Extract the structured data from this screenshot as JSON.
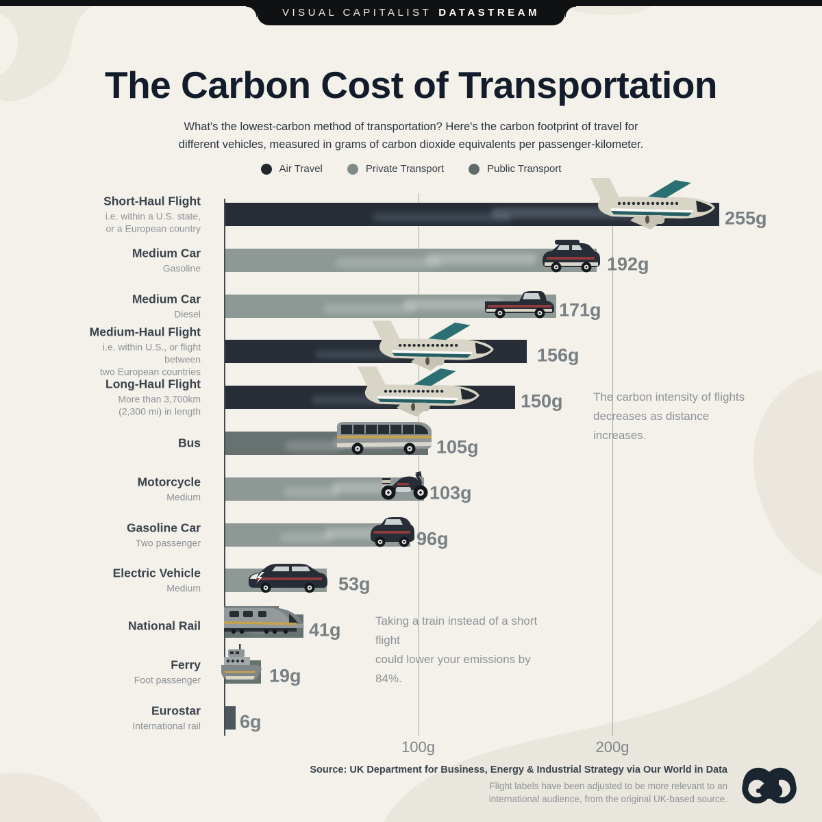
{
  "banner": {
    "brand": "VISUAL CAPITALIST",
    "product": "DATASTREAM"
  },
  "header": {
    "title": "The Carbon Cost of Transportation",
    "subtitle": "What's the lowest-carbon method of transportation? Here's the carbon footprint of travel for\ndifferent vehicles, measured in grams of carbon dioxide equivalents per passenger-kilometer."
  },
  "legend": [
    {
      "label": "Air Travel",
      "color": "#22262b",
      "category": "air"
    },
    {
      "label": "Private Transport",
      "color": "#7e8b88",
      "category": "private"
    },
    {
      "label": "Public Transport",
      "color": "#5f6c6a",
      "category": "public"
    }
  ],
  "chart_data": {
    "type": "bar",
    "orientation": "horizontal",
    "title": "The Carbon Cost of Transportation",
    "unit": "grams of CO2 equivalents per passenger-kilometer",
    "xlim": [
      0,
      290
    ],
    "x_ticks": [
      {
        "value": 100,
        "label": "100g"
      },
      {
        "value": 200,
        "label": "200g"
      }
    ],
    "rows": [
      {
        "label": "Short-Haul Flight",
        "sublabel": "i.e. within a U.S. state,\nor a European country",
        "value": 255,
        "value_label": "255g",
        "category": "air",
        "icon": "plane"
      },
      {
        "label": "Medium Car",
        "sublabel": "Gasoline",
        "value": 192,
        "value_label": "192g",
        "category": "private",
        "icon": "suv"
      },
      {
        "label": "Medium Car",
        "sublabel": "Diesel",
        "value": 171,
        "value_label": "171g",
        "category": "private",
        "icon": "pickup"
      },
      {
        "label": "Medium-Haul Flight",
        "sublabel": "i.e. within U.S., or flight between\ntwo European countries",
        "value": 156,
        "value_label": "156g",
        "category": "air",
        "icon": "plane2"
      },
      {
        "label": "Long-Haul Flight",
        "sublabel": "More than 3,700km\n(2,300 mi) in length",
        "value": 150,
        "value_label": "150g",
        "category": "air",
        "icon": "plane2"
      },
      {
        "label": "Bus",
        "sublabel": "",
        "value": 105,
        "value_label": "105g",
        "category": "public",
        "icon": "bus"
      },
      {
        "label": "Motorcycle",
        "sublabel": "Medium",
        "value": 103,
        "value_label": "103g",
        "category": "private",
        "icon": "moto"
      },
      {
        "label": "Gasoline Car",
        "sublabel": "Two passenger",
        "value": 96,
        "value_label": "96g",
        "category": "private",
        "icon": "smallcar"
      },
      {
        "label": "Electric Vehicle",
        "sublabel": "Medium",
        "value": 53,
        "value_label": "53g",
        "category": "private",
        "icon": "wagon"
      },
      {
        "label": "National Rail",
        "sublabel": "",
        "value": 41,
        "value_label": "41g",
        "category": "public",
        "icon": "train"
      },
      {
        "label": "Ferry",
        "sublabel": "Foot passenger",
        "value": 19,
        "value_label": "19g",
        "category": "public",
        "icon": "ferry"
      },
      {
        "label": "Eurostar",
        "sublabel": "International rail",
        "value": 6,
        "value_label": "6g",
        "category": "rail",
        "icon": "none"
      }
    ],
    "annotations": [
      {
        "text": "The carbon intensity of flights\ndecreases as distance increases."
      },
      {
        "text": "Taking a train instead of a short flight\ncould lower your emissions by 84%."
      }
    ],
    "legend_position": "top",
    "grid": true
  },
  "footer": {
    "source": "Source: UK Department for Business, Energy & Industrial Strategy via Our World in Data",
    "note": "Flight labels have been adjusted to be more relevant to an\ninternational audience, from the original UK-based source."
  },
  "colors": {
    "background": "#f3f1ea",
    "blob": "#e8e5db",
    "banner_black": "#0f1113",
    "title": "#131c2b",
    "category": {
      "air": "#262d36",
      "private": "#8e9995",
      "public": "#677170",
      "rail": "#4e575e"
    },
    "vehicle": {
      "dark": "#262d36",
      "cream": "#d9d5c6",
      "teal": "#2b6f72",
      "teal_dark": "#265f63",
      "gray": "#8f9597",
      "yellow": "#c8a24a",
      "red": "#8f3b3b",
      "window": "#ccd1d2"
    }
  }
}
